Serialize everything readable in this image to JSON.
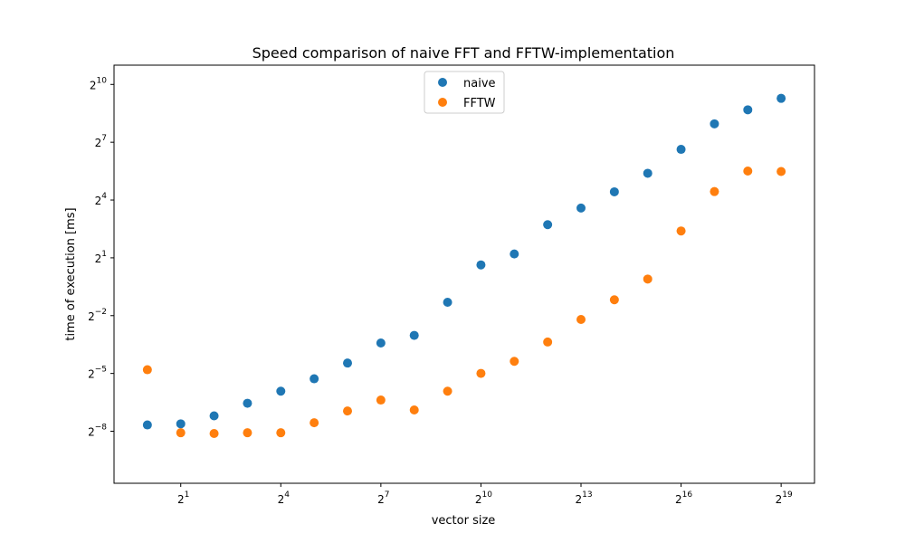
{
  "chart_data": {
    "type": "scatter",
    "title": "Speed comparison of naive FFT and FFTW-implementation",
    "xlabel": "vector size",
    "ylabel": "time of execution [ms]",
    "xscale": "log2",
    "yscale": "log2",
    "xlim_exp": [
      -1.0,
      20.0
    ],
    "ylim_exp": [
      -10.7,
      11.0
    ],
    "xticks_exp": [
      1,
      4,
      7,
      10,
      13,
      16,
      19
    ],
    "yticks_exp": [
      -8,
      -5,
      -2,
      1,
      4,
      7,
      10
    ],
    "xtick_base": "2",
    "ytick_base": "2",
    "grid": false,
    "legend_position": "upper-center",
    "x": [
      1,
      2,
      4,
      8,
      16,
      32,
      64,
      128,
      256,
      512,
      1024,
      2048,
      4096,
      8192,
      16384,
      32768,
      65536,
      131072,
      262144,
      524288
    ],
    "series": [
      {
        "name": "naive",
        "color": "#1f77b4",
        "values": [
          0.0049,
          0.0051,
          0.0068,
          0.0107,
          0.0165,
          0.0258,
          0.0454,
          0.0935,
          0.1229,
          0.4043,
          1.552,
          2.3,
          6.6,
          12.0,
          21.5,
          41.9,
          99.0,
          248.0,
          411.0,
          621.0
        ]
      },
      {
        "name": "FFTW",
        "color": "#ff7f0e",
        "values": [
          0.0357,
          0.0037,
          0.0036,
          0.0037,
          0.0037,
          0.0053,
          0.0081,
          0.012,
          0.0084,
          0.0165,
          0.0313,
          0.0483,
          0.0968,
          0.2178,
          0.4422,
          0.9333,
          5.26,
          21.7,
          45.4,
          44.7
        ]
      }
    ]
  }
}
